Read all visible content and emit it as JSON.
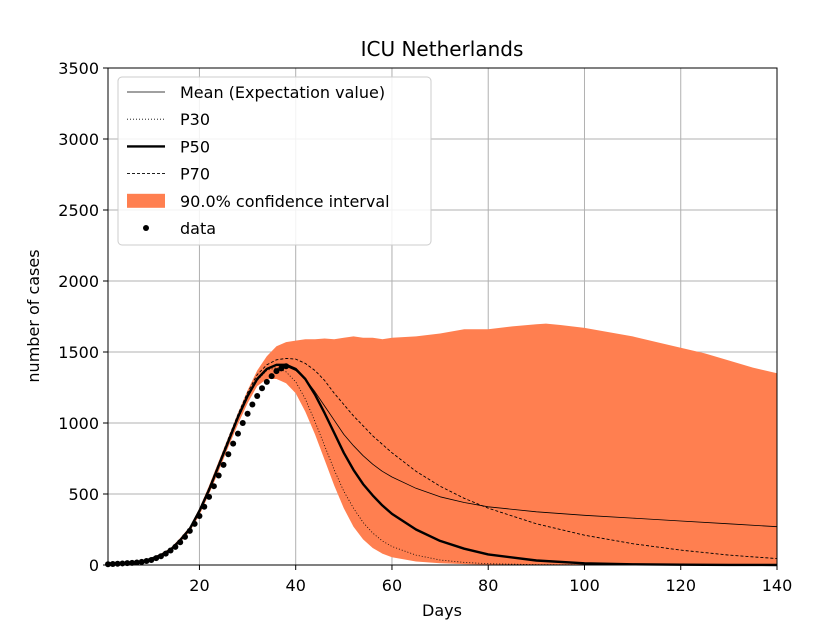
{
  "chart_data": {
    "type": "line",
    "title": "ICU Netherlands",
    "xlabel": "Days",
    "ylabel": "number of cases",
    "xlim": [
      1,
      140
    ],
    "ylim": [
      0,
      3500
    ],
    "xticks": [
      20,
      40,
      60,
      80,
      100,
      120,
      140
    ],
    "yticks": [
      0,
      500,
      1000,
      1500,
      2000,
      2500,
      3000,
      3500
    ],
    "grid": true,
    "legend_position": "top-left",
    "colors": {
      "band": "#FF7F50",
      "line": "#000000",
      "grid": "#b0b0b0"
    },
    "legend": [
      {
        "label": "Mean (Expectation value)",
        "style": "thin"
      },
      {
        "label": "P30",
        "style": "dotted"
      },
      {
        "label": "P50",
        "style": "thick"
      },
      {
        "label": "P70",
        "style": "dashed"
      },
      {
        "label": "90.0% confidence interval",
        "style": "patch"
      },
      {
        "label": "data",
        "style": "marker"
      }
    ],
    "confidence_interval": {
      "name": "90.0% confidence interval",
      "x": [
        1,
        5,
        8,
        10,
        12,
        14,
        16,
        18,
        20,
        22,
        24,
        26,
        28,
        30,
        32,
        34,
        36,
        38,
        40,
        42,
        44,
        46,
        48,
        50,
        52,
        54,
        56,
        58,
        60,
        65,
        70,
        75,
        80,
        85,
        90,
        92,
        95,
        100,
        105,
        110,
        115,
        120,
        125,
        130,
        135,
        140
      ],
      "upper": [
        12,
        18,
        28,
        50,
        80,
        120,
        190,
        270,
        400,
        560,
        730,
        900,
        1070,
        1230,
        1370,
        1470,
        1540,
        1570,
        1580,
        1590,
        1590,
        1595,
        1590,
        1600,
        1610,
        1600,
        1600,
        1590,
        1600,
        1610,
        1630,
        1660,
        1660,
        1680,
        1695,
        1700,
        1690,
        1670,
        1640,
        1610,
        1570,
        1530,
        1490,
        1440,
        1390,
        1350
      ],
      "lower": [
        8,
        12,
        20,
        38,
        60,
        95,
        160,
        235,
        350,
        500,
        660,
        830,
        990,
        1140,
        1260,
        1310,
        1310,
        1280,
        1210,
        1080,
        920,
        740,
        560,
        400,
        270,
        180,
        120,
        80,
        55,
        25,
        12,
        6,
        3,
        2,
        1,
        1,
        1,
        0,
        0,
        0,
        0,
        0,
        0,
        0,
        0,
        0
      ]
    },
    "series": [
      {
        "name": "Mean (Expectation value)",
        "style": "thin",
        "x": [
          1,
          5,
          8,
          10,
          12,
          14,
          16,
          18,
          20,
          22,
          24,
          26,
          28,
          30,
          32,
          34,
          36,
          38,
          40,
          42,
          44,
          46,
          48,
          50,
          52,
          54,
          56,
          58,
          60,
          65,
          70,
          75,
          80,
          90,
          100,
          110,
          120,
          130,
          140
        ],
        "y": [
          10,
          15,
          25,
          44,
          70,
          108,
          175,
          255,
          380,
          530,
          700,
          870,
          1040,
          1190,
          1310,
          1380,
          1405,
          1400,
          1370,
          1310,
          1220,
          1120,
          1020,
          920,
          840,
          770,
          710,
          660,
          620,
          540,
          480,
          440,
          410,
          375,
          350,
          330,
          310,
          290,
          270
        ]
      },
      {
        "name": "P30",
        "style": "dotted",
        "x": [
          1,
          5,
          8,
          10,
          12,
          14,
          16,
          18,
          20,
          22,
          24,
          26,
          28,
          30,
          32,
          34,
          36,
          38,
          40,
          42,
          44,
          46,
          48,
          50,
          52,
          54,
          56,
          58,
          60,
          65,
          70,
          75,
          80,
          90,
          100,
          110,
          120,
          130,
          140
        ],
        "y": [
          9,
          14,
          23,
          42,
          67,
          104,
          170,
          250,
          370,
          520,
          690,
          860,
          1030,
          1180,
          1300,
          1370,
          1390,
          1360,
          1290,
          1170,
          1010,
          840,
          670,
          520,
          400,
          300,
          225,
          170,
          130,
          70,
          35,
          18,
          9,
          3,
          1,
          0,
          0,
          0,
          0
        ]
      },
      {
        "name": "P50",
        "style": "thick",
        "x": [
          1,
          5,
          8,
          10,
          12,
          14,
          16,
          18,
          20,
          22,
          24,
          26,
          28,
          30,
          32,
          34,
          36,
          38,
          40,
          42,
          44,
          46,
          48,
          50,
          52,
          54,
          56,
          58,
          60,
          65,
          70,
          75,
          80,
          90,
          100,
          110,
          120,
          130,
          140
        ],
        "y": [
          10,
          15,
          25,
          44,
          70,
          108,
          175,
          255,
          380,
          530,
          700,
          870,
          1040,
          1190,
          1310,
          1380,
          1410,
          1410,
          1380,
          1310,
          1200,
          1070,
          930,
          790,
          670,
          570,
          490,
          420,
          360,
          250,
          170,
          115,
          75,
          32,
          12,
          5,
          2,
          1,
          0
        ]
      },
      {
        "name": "P70",
        "style": "dashed",
        "x": [
          1,
          5,
          8,
          10,
          12,
          14,
          16,
          18,
          20,
          22,
          24,
          26,
          28,
          30,
          32,
          34,
          36,
          38,
          40,
          42,
          44,
          46,
          48,
          50,
          52,
          54,
          56,
          58,
          60,
          65,
          70,
          75,
          80,
          90,
          100,
          110,
          120,
          130,
          140
        ],
        "y": [
          11,
          16,
          27,
          46,
          73,
          112,
          180,
          262,
          390,
          545,
          715,
          890,
          1060,
          1215,
          1340,
          1410,
          1445,
          1455,
          1450,
          1420,
          1370,
          1300,
          1210,
          1130,
          1050,
          980,
          910,
          850,
          790,
          660,
          555,
          470,
          400,
          290,
          210,
          150,
          105,
          70,
          45
        ]
      }
    ],
    "data_points": {
      "name": "data",
      "x": [
        1,
        2,
        3,
        4,
        5,
        6,
        7,
        8,
        9,
        10,
        11,
        12,
        13,
        14,
        15,
        16,
        17,
        18,
        19,
        20,
        21,
        22,
        23,
        24,
        25,
        26,
        27,
        28,
        29,
        30,
        31,
        32,
        33,
        34,
        35,
        36,
        37,
        38
      ],
      "y": [
        5,
        7,
        9,
        11,
        13,
        15,
        18,
        22,
        28,
        35,
        48,
        62,
        80,
        102,
        128,
        160,
        198,
        240,
        290,
        345,
        410,
        480,
        555,
        630,
        705,
        780,
        855,
        925,
        1000,
        1065,
        1130,
        1190,
        1245,
        1290,
        1330,
        1365,
        1385,
        1400
      ]
    }
  }
}
